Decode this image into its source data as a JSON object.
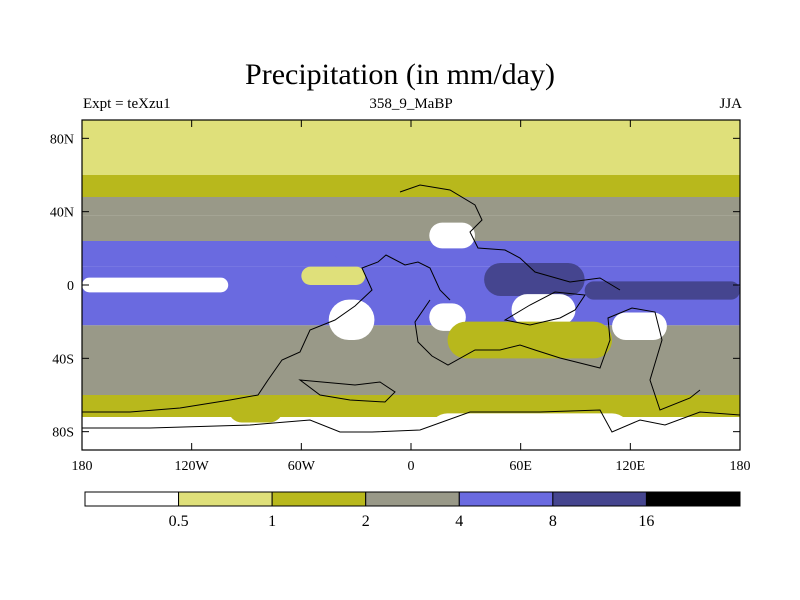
{
  "chart_data": {
    "type": "heatmap",
    "title": "Precipitation (in mm/day)",
    "subtitle_left": "Expt = teXzu1",
    "subtitle_center": "358_9_MaBP",
    "subtitle_right": "JJA",
    "x_ticks": [
      "180",
      "120W",
      "60W",
      "0",
      "60E",
      "120E",
      "180"
    ],
    "x_tick_values": [
      -180,
      -120,
      -60,
      0,
      60,
      120,
      180
    ],
    "y_ticks": [
      "80N",
      "40N",
      "0",
      "40S",
      "80S"
    ],
    "y_tick_values": [
      80,
      40,
      0,
      -40,
      -80
    ],
    "xlim": [
      -180,
      180
    ],
    "ylim": [
      -90,
      90
    ],
    "colorbar": {
      "labels": [
        "0.5",
        "1",
        "2",
        "4",
        "8",
        "16"
      ],
      "colors": [
        "#ffffff",
        "#dfe07a",
        "#b8b81c",
        "#999988",
        "#6a6ae0",
        "#45458f",
        "#000000"
      ]
    },
    "bands": [
      {
        "lat": [
          60,
          90
        ],
        "value": 0.7
      },
      {
        "lat": [
          48,
          60
        ],
        "value": 1.5
      },
      {
        "lat": [
          38,
          48
        ],
        "value": 2.5
      },
      {
        "lat": [
          24,
          38
        ],
        "value": 3.0
      },
      {
        "lat": [
          10,
          24
        ],
        "value": 4.0
      },
      {
        "lat": [
          -6,
          10
        ],
        "value": 6.0
      },
      {
        "lat": [
          -22,
          -6
        ],
        "value": 4.5
      },
      {
        "lat": [
          -42,
          -22
        ],
        "value": 3.0
      },
      {
        "lat": [
          -60,
          -42
        ],
        "value": 3.2
      },
      {
        "lat": [
          -72,
          -60
        ],
        "value": 1.5
      },
      {
        "lat": [
          -90,
          -72
        ],
        "value": 0.3
      }
    ],
    "features": [
      {
        "lon": -180,
        "lon2": -100,
        "lat": 4,
        "lat2": -4,
        "value": 0.3
      },
      {
        "lon": -180,
        "lon2": -40,
        "lat": 16,
        "lat2": 10,
        "value": 6.0
      },
      {
        "lon": 10,
        "lon2": 35,
        "lat": 34,
        "lat2": 20,
        "value": 0.3
      },
      {
        "lon": -60,
        "lon2": -25,
        "lat": 10,
        "lat2": 0,
        "value": 0.7
      },
      {
        "lon": 40,
        "lon2": 95,
        "lat": 12,
        "lat2": -6,
        "value": 10.0
      },
      {
        "lon": 95,
        "lon2": 180,
        "lat": 2,
        "lat2": -8,
        "value": 10.0
      },
      {
        "lon": -45,
        "lon2": -20,
        "lat": -8,
        "lat2": -30,
        "value": 0.3
      },
      {
        "lon": 10,
        "lon2": 30,
        "lat": -10,
        "lat2": -25,
        "value": 0.3
      },
      {
        "lon": 55,
        "lon2": 90,
        "lat": -5,
        "lat2": -22,
        "value": 0.3
      },
      {
        "lon": 110,
        "lon2": 140,
        "lat": -15,
        "lat2": -30,
        "value": 0.3
      },
      {
        "lon": 20,
        "lon2": 110,
        "lat": -20,
        "lat2": -40,
        "value": 1.5
      },
      {
        "lon": 10,
        "lon2": 120,
        "lat": -70,
        "lat2": -90,
        "value": 0.3
      },
      {
        "lon": -100,
        "lon2": -70,
        "lat": -60,
        "lat2": -75,
        "value": 1.5
      }
    ]
  }
}
